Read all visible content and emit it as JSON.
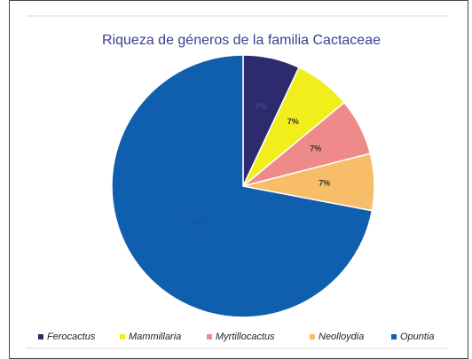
{
  "chart_data": {
    "type": "pie",
    "title": "Riqueza de géneros de la familia Cactaceae",
    "categories": [
      "Ferocactus",
      "Mammillaria",
      "Myrtillocactus",
      "Neolloydia",
      "Opuntia"
    ],
    "values": [
      7,
      7,
      7,
      7,
      72
    ],
    "value_labels": [
      "7%",
      "7%",
      "7%",
      "7%",
      "72%"
    ],
    "colors": [
      "#2e2a6e",
      "#f2ee1c",
      "#ef8a8a",
      "#f7bd68",
      "#0f5fae"
    ],
    "legend": "bottom"
  }
}
